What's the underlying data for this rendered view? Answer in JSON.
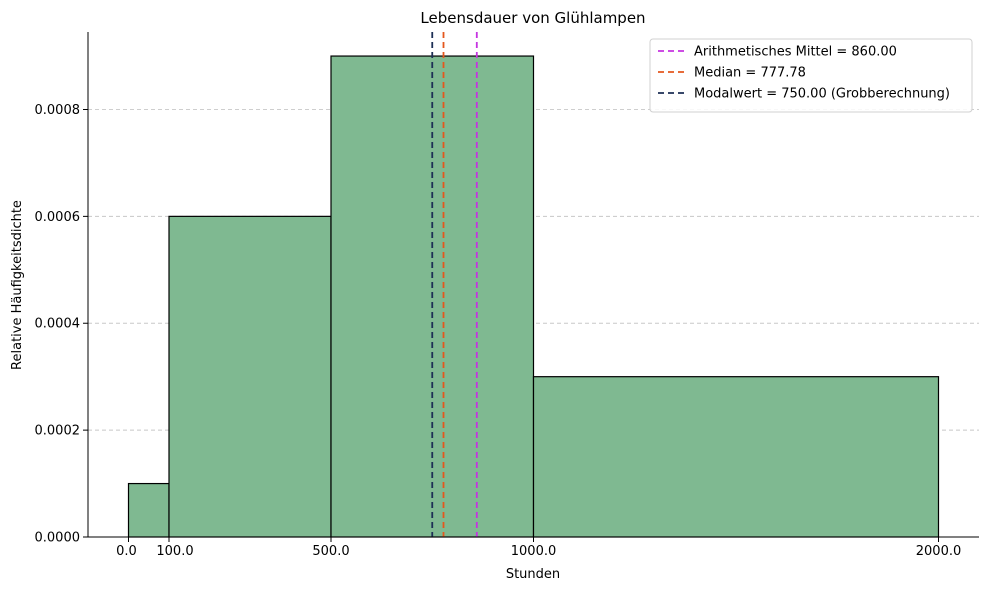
{
  "chart_data": {
    "type": "bar",
    "title": "Lebensdauer von Glühlampen",
    "xlabel": "Stunden",
    "ylabel": "Relative Häufigkeitsdichte",
    "bins": [
      {
        "x0": 0,
        "x1": 100,
        "density": 0.0001
      },
      {
        "x0": 100,
        "x1": 500,
        "density": 0.0006
      },
      {
        "x0": 500,
        "x1": 1000,
        "density": 0.0009
      },
      {
        "x0": 1000,
        "x1": 2000,
        "density": 0.0003
      }
    ],
    "xticks": [
      0,
      100,
      500,
      1000,
      2000
    ],
    "xtick_labels": [
      "0.0",
      "100.0",
      "500.0",
      "1000.0",
      "2000.0"
    ],
    "yticks": [
      0,
      0.0002,
      0.0004,
      0.0006,
      0.0008
    ],
    "ytick_labels": [
      "0.0000",
      "0.0002",
      "0.0004",
      "0.0006",
      "0.0008"
    ],
    "xlim": [
      -100,
      2100
    ],
    "ylim": [
      0,
      0.000945
    ],
    "grid": "y",
    "bar_color": "#7fb991",
    "bar_edge_color": "#000000",
    "legend_position": "top-right",
    "vlines": [
      {
        "label": "Arithmetisches Mittel = 860.00",
        "x": 860.0,
        "color": "#c634e0"
      },
      {
        "label": "Median = 777.78",
        "x": 777.78,
        "color": "#e4571e"
      },
      {
        "label": "Modalwert = 750.00 (Grobberechnung)",
        "x": 750.0,
        "color": "#1d2f55"
      }
    ]
  }
}
